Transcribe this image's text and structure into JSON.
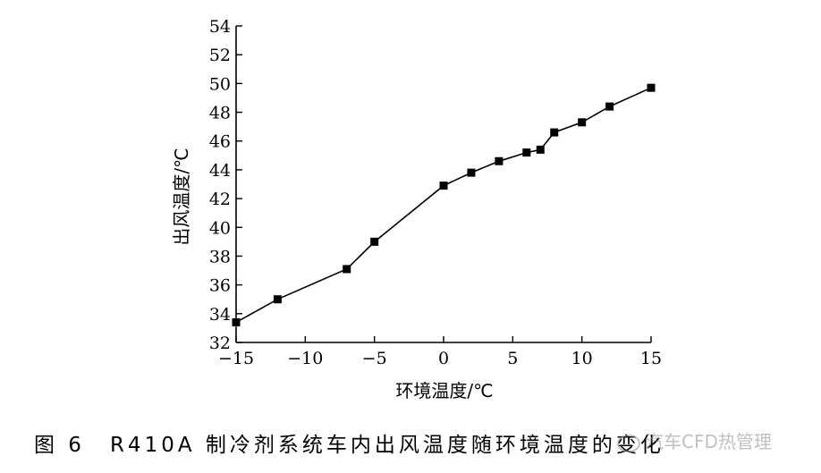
{
  "caption": {
    "figure_number": "图 6",
    "text": "R410A 制冷剂系统车内出风温度随环境温度的变化"
  },
  "watermark": {
    "text": "汽车CFD热管理",
    "icon": "wechat-icon"
  },
  "chart_data": {
    "type": "line",
    "xlabel": "环境温度/℃",
    "ylabel": "出风温度/℃",
    "xlim": [
      -15,
      15
    ],
    "ylim": [
      32,
      54
    ],
    "x_ticks": [
      -15,
      -10,
      -5,
      0,
      5,
      10,
      15
    ],
    "x_tick_labels": [
      "−15",
      "−10",
      "−5",
      "0",
      "5",
      "10",
      "15"
    ],
    "y_ticks": [
      32,
      34,
      36,
      38,
      40,
      42,
      44,
      46,
      48,
      50,
      52,
      54
    ],
    "y_tick_labels": [
      "32",
      "34",
      "36",
      "38",
      "40",
      "42",
      "44",
      "46",
      "48",
      "50",
      "52",
      "54"
    ],
    "grid": false,
    "marker": "square",
    "color": "#000000",
    "series": [
      {
        "x": [
          -15,
          -12,
          -7,
          -5,
          0,
          2,
          4,
          6,
          7,
          8,
          10,
          12,
          15
        ],
        "y": [
          33.4,
          35.0,
          37.1,
          39.0,
          42.9,
          43.8,
          44.6,
          45.2,
          45.4,
          46.6,
          47.3,
          48.4,
          49.7
        ]
      }
    ]
  }
}
